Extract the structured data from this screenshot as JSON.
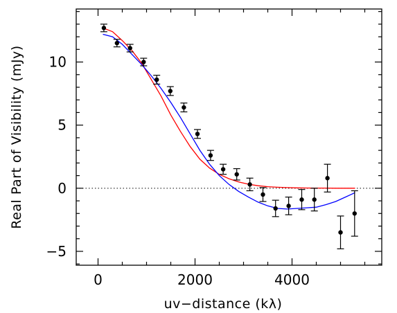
{
  "chart_data": {
    "type": "scatter",
    "xlabel": "uv−distance (kλ)",
    "ylabel": "Real Part of Visibility (mJy)",
    "xlim": [
      -450,
      5850
    ],
    "ylim": [
      -6.1,
      14.2
    ],
    "xticks": [
      0,
      2000,
      4000
    ],
    "xtick_labels": [
      "0",
      "2000",
      "4000"
    ],
    "yticks": [
      -5,
      0,
      5,
      10
    ],
    "ytick_labels": [
      "−5",
      "0",
      "5",
      "10"
    ],
    "grid": false,
    "zero_line": {
      "y": 0,
      "style": "dotted"
    },
    "series": [
      {
        "kind": "points_with_errorbars",
        "color": "#000000",
        "points": [
          {
            "x": 120,
            "y": 12.7,
            "err": 0.3
          },
          {
            "x": 390,
            "y": 11.5,
            "err": 0.3
          },
          {
            "x": 660,
            "y": 11.1,
            "err": 0.3
          },
          {
            "x": 940,
            "y": 10.0,
            "err": 0.3
          },
          {
            "x": 1210,
            "y": 8.6,
            "err": 0.35
          },
          {
            "x": 1490,
            "y": 7.7,
            "err": 0.35
          },
          {
            "x": 1770,
            "y": 6.4,
            "err": 0.35
          },
          {
            "x": 2050,
            "y": 4.3,
            "err": 0.35
          },
          {
            "x": 2320,
            "y": 2.6,
            "err": 0.4
          },
          {
            "x": 2580,
            "y": 1.5,
            "err": 0.4
          },
          {
            "x": 2860,
            "y": 1.1,
            "err": 0.45
          },
          {
            "x": 3130,
            "y": 0.3,
            "err": 0.5
          },
          {
            "x": 3400,
            "y": -0.5,
            "err": 0.55
          },
          {
            "x": 3660,
            "y": -1.6,
            "err": 0.65
          },
          {
            "x": 3930,
            "y": -1.4,
            "err": 0.7
          },
          {
            "x": 4200,
            "y": -0.9,
            "err": 0.8
          },
          {
            "x": 4460,
            "y": -0.9,
            "err": 0.9
          },
          {
            "x": 4730,
            "y": 0.8,
            "err": 1.1
          },
          {
            "x": 5000,
            "y": -3.5,
            "err": 1.3
          },
          {
            "x": 5290,
            "y": -2.0,
            "err": 1.8
          }
        ]
      },
      {
        "kind": "line",
        "color": "#ff0000",
        "x": [
          100,
          300,
          500,
          700,
          900,
          1100,
          1300,
          1500,
          1700,
          1900,
          2100,
          2300,
          2500,
          2700,
          2900,
          3100,
          3300,
          3500,
          3700,
          3900,
          4100,
          4300,
          4500,
          4700,
          4900,
          5100,
          5300
        ],
        "y": [
          12.7,
          12.4,
          11.7,
          10.9,
          9.9,
          8.6,
          7.3,
          5.8,
          4.5,
          3.3,
          2.3,
          1.6,
          1.1,
          0.75,
          0.5,
          0.32,
          0.2,
          0.12,
          0.08,
          0.05,
          0.03,
          0.02,
          0.01,
          0.01,
          0.0,
          0.0,
          0.0
        ]
      },
      {
        "kind": "line",
        "color": "#0000ff",
        "x": [
          100,
          300,
          500,
          700,
          900,
          1100,
          1300,
          1500,
          1700,
          1900,
          2100,
          2300,
          2500,
          2700,
          2900,
          3100,
          3300,
          3500,
          3700,
          3900,
          4100,
          4300,
          4500,
          4700,
          4900,
          5100,
          5300
        ],
        "y": [
          12.2,
          12.0,
          11.4,
          10.6,
          9.8,
          8.9,
          7.9,
          6.8,
          5.6,
          4.3,
          3.0,
          1.9,
          1.0,
          0.3,
          -0.25,
          -0.7,
          -1.1,
          -1.4,
          -1.6,
          -1.65,
          -1.6,
          -1.55,
          -1.5,
          -1.3,
          -1.05,
          -0.7,
          -0.35
        ]
      }
    ]
  }
}
